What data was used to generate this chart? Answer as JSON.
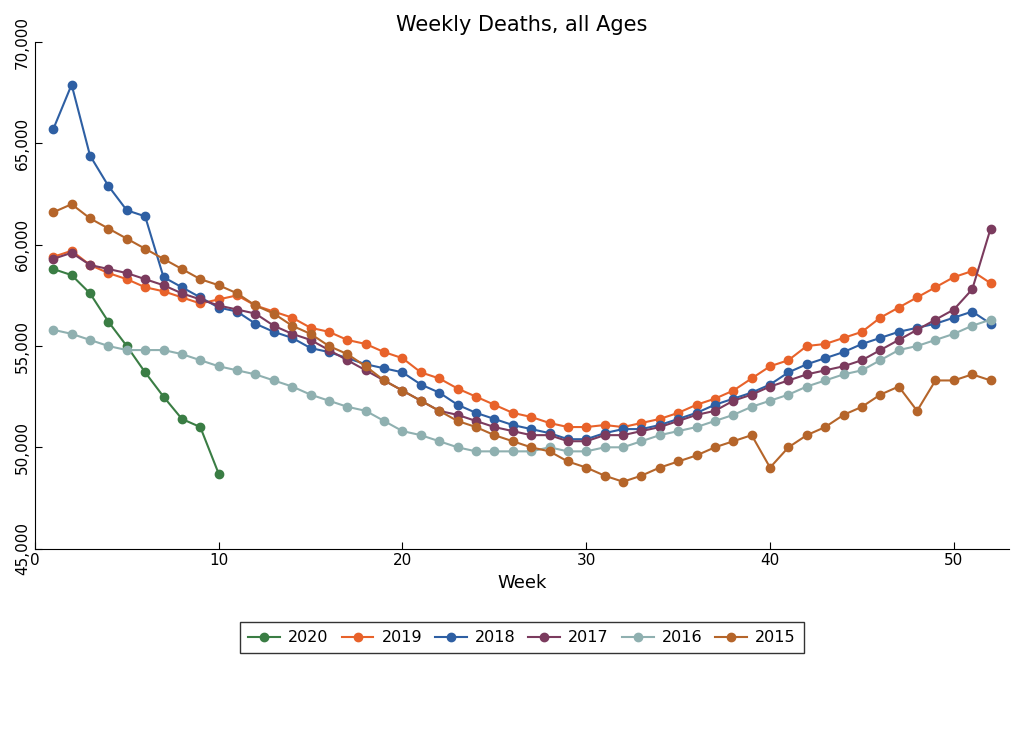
{
  "title": "Weekly Deaths, all Ages",
  "xlabel": "Week",
  "ylim": [
    45000,
    70000
  ],
  "xlim": [
    0,
    53
  ],
  "yticks": [
    45000,
    50000,
    55000,
    60000,
    65000,
    70000
  ],
  "ytick_labels": [
    "45,000",
    "50,000",
    "55,000",
    "60,000",
    "65,000",
    "70,000"
  ],
  "xticks": [
    0,
    10,
    20,
    30,
    40,
    50
  ],
  "series": {
    "2020": {
      "color": "#3a7d44",
      "weeks": [
        1,
        2,
        3,
        4,
        5,
        6,
        7,
        8,
        9,
        10
      ],
      "values": [
        58800,
        58500,
        57600,
        56200,
        55000,
        53700,
        52500,
        51400,
        51000,
        48700
      ]
    },
    "2019": {
      "color": "#e8622a",
      "weeks": [
        1,
        2,
        3,
        4,
        5,
        6,
        7,
        8,
        9,
        10,
        11,
        12,
        13,
        14,
        15,
        16,
        17,
        18,
        19,
        20,
        21,
        22,
        23,
        24,
        25,
        26,
        27,
        28,
        29,
        30,
        31,
        32,
        33,
        34,
        35,
        36,
        37,
        38,
        39,
        40,
        41,
        42,
        43,
        44,
        45,
        46,
        47,
        48,
        49,
        50,
        51,
        52
      ],
      "values": [
        59400,
        59700,
        59000,
        58600,
        58300,
        57900,
        57700,
        57400,
        57100,
        57300,
        57500,
        57000,
        56700,
        56400,
        55900,
        55700,
        55300,
        55100,
        54700,
        54400,
        53700,
        53400,
        52900,
        52500,
        52100,
        51700,
        51500,
        51200,
        51000,
        51000,
        51100,
        51000,
        51200,
        51400,
        51700,
        52100,
        52400,
        52800,
        53400,
        54000,
        54300,
        55000,
        55100,
        55400,
        55700,
        56400,
        56900,
        57400,
        57900,
        58400,
        58700,
        58100
      ]
    },
    "2018": {
      "color": "#2e5fa3",
      "weeks": [
        1,
        2,
        3,
        4,
        5,
        6,
        7,
        8,
        9,
        10,
        11,
        12,
        13,
        14,
        15,
        16,
        17,
        18,
        19,
        20,
        21,
        22,
        23,
        24,
        25,
        26,
        27,
        28,
        29,
        30,
        31,
        32,
        33,
        34,
        35,
        36,
        37,
        38,
        39,
        40,
        41,
        42,
        43,
        44,
        45,
        46,
        47,
        48,
        49,
        50,
        51,
        52
      ],
      "values": [
        65700,
        67900,
        64400,
        62900,
        61700,
        61400,
        58400,
        57900,
        57400,
        56900,
        56700,
        56100,
        55700,
        55400,
        54900,
        54700,
        54400,
        54100,
        53900,
        53700,
        53100,
        52700,
        52100,
        51700,
        51400,
        51100,
        50900,
        50700,
        50400,
        50400,
        50700,
        50900,
        50900,
        51100,
        51400,
        51700,
        52100,
        52400,
        52700,
        53100,
        53700,
        54100,
        54400,
        54700,
        55100,
        55400,
        55700,
        55900,
        56100,
        56400,
        56700,
        56100
      ]
    },
    "2017": {
      "color": "#7b3b5e",
      "weeks": [
        1,
        2,
        3,
        4,
        5,
        6,
        7,
        8,
        9,
        10,
        11,
        12,
        13,
        14,
        15,
        16,
        17,
        18,
        19,
        20,
        21,
        22,
        23,
        24,
        25,
        26,
        27,
        28,
        29,
        30,
        31,
        32,
        33,
        34,
        35,
        36,
        37,
        38,
        39,
        40,
        41,
        42,
        43,
        44,
        45,
        46,
        47,
        48,
        49,
        50,
        51,
        52
      ],
      "values": [
        59300,
        59600,
        59000,
        58800,
        58600,
        58300,
        58000,
        57600,
        57300,
        57000,
        56800,
        56600,
        56000,
        55600,
        55300,
        54800,
        54300,
        53800,
        53300,
        52800,
        52300,
        51800,
        51600,
        51300,
        51000,
        50800,
        50600,
        50600,
        50300,
        50300,
        50600,
        50600,
        50800,
        51000,
        51300,
        51600,
        51800,
        52300,
        52600,
        53000,
        53300,
        53600,
        53800,
        54000,
        54300,
        54800,
        55300,
        55800,
        56300,
        56800,
        57800,
        60800
      ]
    },
    "2016": {
      "color": "#8fb0b0",
      "weeks": [
        1,
        2,
        3,
        4,
        5,
        6,
        7,
        8,
        9,
        10,
        11,
        12,
        13,
        14,
        15,
        16,
        17,
        18,
        19,
        20,
        21,
        22,
        23,
        24,
        25,
        26,
        27,
        28,
        29,
        30,
        31,
        32,
        33,
        34,
        35,
        36,
        37,
        38,
        39,
        40,
        41,
        42,
        43,
        44,
        45,
        46,
        47,
        48,
        49,
        50,
        51,
        52
      ],
      "values": [
        55800,
        55600,
        55300,
        55000,
        54800,
        54800,
        54800,
        54600,
        54300,
        54000,
        53800,
        53600,
        53300,
        53000,
        52600,
        52300,
        52000,
        51800,
        51300,
        50800,
        50600,
        50300,
        50000,
        49800,
        49800,
        49800,
        49800,
        50000,
        49800,
        49800,
        50000,
        50000,
        50300,
        50600,
        50800,
        51000,
        51300,
        51600,
        52000,
        52300,
        52600,
        53000,
        53300,
        53600,
        53800,
        54300,
        54800,
        55000,
        55300,
        55600,
        56000,
        56300
      ]
    },
    "2015": {
      "color": "#b5652a",
      "weeks": [
        1,
        2,
        3,
        4,
        5,
        6,
        7,
        8,
        9,
        10,
        11,
        12,
        13,
        14,
        15,
        16,
        17,
        18,
        19,
        20,
        21,
        22,
        23,
        24,
        25,
        26,
        27,
        28,
        29,
        30,
        31,
        32,
        33,
        34,
        35,
        36,
        37,
        38,
        39,
        40,
        41,
        42,
        43,
        44,
        45,
        46,
        47,
        48,
        49,
        50,
        51,
        52
      ],
      "values": [
        61600,
        62000,
        61300,
        60800,
        60300,
        59800,
        59300,
        58800,
        58300,
        58000,
        57600,
        57000,
        56600,
        56000,
        55600,
        55000,
        54600,
        54000,
        53300,
        52800,
        52300,
        51800,
        51300,
        51000,
        50600,
        50300,
        50000,
        49800,
        49300,
        49000,
        48600,
        48300,
        48600,
        49000,
        49300,
        49600,
        50000,
        50300,
        50600,
        49000,
        50000,
        50600,
        51000,
        51600,
        52000,
        52600,
        53000,
        51800,
        53300,
        53300,
        53600,
        53300
      ]
    }
  },
  "legend_order": [
    "2020",
    "2019",
    "2018",
    "2017",
    "2016",
    "2015"
  ]
}
